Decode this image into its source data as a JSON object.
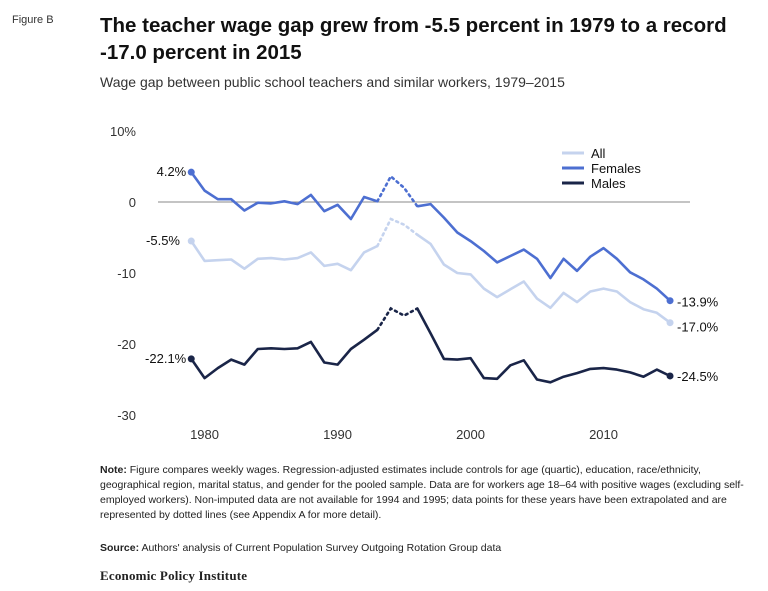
{
  "figure_label": "Figure B",
  "title": "The teacher wage gap grew from -5.5 percent in 1979 to a record -17.0 percent in 2015",
  "subtitle": "Wage gap between public school teachers and similar workers, 1979–2015",
  "notes": {
    "label": "Note:",
    "text": "Figure compares weekly wages. Regression-adjusted estimates include controls for age (quartic), education, race/ethnicity, geographical region, marital status, and gender for the pooled sample. Data are for workers age 18–64 with positive wages (excluding self-employed workers). Non-imputed data are not available for 1994 and 1995; data points for these years have been extrapolated and are represented by dotted lines (see Appendix A for more detail)."
  },
  "source": {
    "label": "Source:",
    "text": "Authors' analysis of Current Population Survey Outgoing Rotation Group data"
  },
  "brand": "Economic Policy Institute",
  "chart_data": {
    "type": "line",
    "x": [
      1979,
      1980,
      1981,
      1982,
      1983,
      1984,
      1985,
      1986,
      1987,
      1988,
      1989,
      1990,
      1991,
      1992,
      1993,
      1994,
      1995,
      1996,
      1997,
      1998,
      1999,
      2000,
      2001,
      2002,
      2003,
      2004,
      2005,
      2006,
      2007,
      2008,
      2009,
      2010,
      2011,
      2012,
      2013,
      2014,
      2015
    ],
    "xlim": [
      1976.5,
      2016.5
    ],
    "xticks": [
      1980,
      1990,
      2000,
      2010
    ],
    "ylim": [
      -30,
      10
    ],
    "yticks": [
      10,
      0,
      -10,
      -20,
      -30
    ],
    "ytick_labels": [
      "10%",
      "0",
      "-10",
      "-20",
      "-30"
    ],
    "zero_line": true,
    "grid": false,
    "legend_position": "top-right",
    "dotted_years": [
      1994,
      1995
    ],
    "series": [
      {
        "name": "All",
        "color": "#c5d3ee",
        "values": [
          -5.5,
          -8.3,
          -8.2,
          -8.1,
          -9.4,
          -8.0,
          -7.9,
          -8.1,
          -7.9,
          -7.1,
          -9.0,
          -8.7,
          -9.6,
          -7.1,
          -6.2,
          -2.4,
          -3.2,
          -4.6,
          -5.9,
          -8.8,
          -10.0,
          -10.2,
          -12.2,
          -13.4,
          -12.3,
          -11.2,
          -13.6,
          -14.9,
          -12.8,
          -14.1,
          -12.6,
          -12.2,
          -12.6,
          -14.1,
          -15.1,
          -15.6,
          -17.0
        ],
        "end_label": "-17.0%"
      },
      {
        "name": "Females",
        "color": "#4d6fd1",
        "values": [
          4.2,
          1.6,
          0.4,
          0.4,
          -1.2,
          -0.1,
          -0.2,
          0.1,
          -0.3,
          1.0,
          -1.3,
          -0.4,
          -2.4,
          0.7,
          0.1,
          3.6,
          2.0,
          -0.6,
          -0.3,
          -2.2,
          -4.3,
          -5.5,
          -6.9,
          -8.5,
          -7.6,
          -6.7,
          -8.0,
          -10.7,
          -8.0,
          -9.7,
          -7.7,
          -6.5,
          -8.0,
          -9.9,
          -10.9,
          -12.2,
          -13.9
        ],
        "start_label": "4.2%",
        "end_label": "-13.9%"
      },
      {
        "name": "Males",
        "color": "#1a2548",
        "values": [
          -22.1,
          -24.8,
          -23.4,
          -22.2,
          -22.9,
          -20.7,
          -20.6,
          -20.7,
          -20.6,
          -19.7,
          -22.6,
          -22.9,
          -20.7,
          -19.4,
          -18.0,
          -15.0,
          -16.0,
          -15.0,
          -18.5,
          -22.1,
          -22.2,
          -22.0,
          -24.8,
          -24.9,
          -23.0,
          -22.3,
          -25.0,
          -25.4,
          -24.6,
          -24.1,
          -23.5,
          -23.4,
          -23.6,
          -24.0,
          -24.6,
          -23.6,
          -24.5
        ],
        "start_label": "-22.1%",
        "end_label": "-24.5%"
      }
    ],
    "extra_labels": [
      {
        "series": "All",
        "year": 1979,
        "text": "-5.5%"
      }
    ]
  }
}
